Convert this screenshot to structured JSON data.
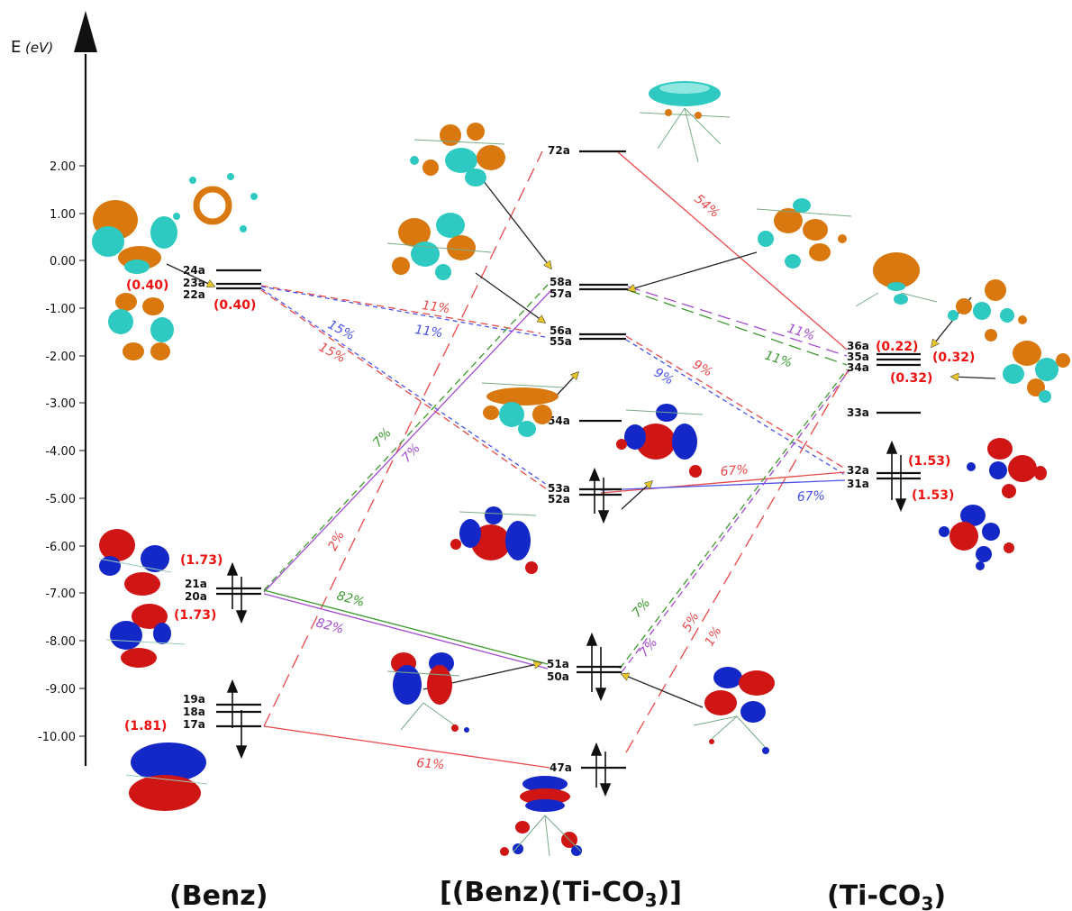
{
  "axis": {
    "label_main": "E",
    "label_unit": "(eV)",
    "ticks": [
      "2.00",
      "1.00",
      "0.00",
      "-1.00",
      "-2.00",
      "-3.00",
      "-4.00",
      "-5.00",
      "-6.00",
      "-7.00",
      "-8.00",
      "-9.00",
      "-10.00"
    ]
  },
  "fragments": {
    "left": "(Benz)",
    "center_a": "[(Benz)(Ti-CO",
    "center_sub": "3",
    "center_b": ")]",
    "right_a": "(Ti-CO",
    "right_sub": "3",
    "right_b": ")"
  },
  "levels": {
    "l24": "24a",
    "l23": "23a",
    "l22": "22a",
    "l21": "21a",
    "l20": "20a",
    "l19": "19a",
    "l18": "18a",
    "l17": "17a",
    "c72": "72a",
    "c58": "58a",
    "c57": "57a",
    "c56": "56a",
    "c55": "55a",
    "c54": "54a",
    "c53": "53a",
    "c52": "52a",
    "c51": "51a",
    "c50": "50a",
    "c47": "47a",
    "r36": "36a",
    "r35": "35a",
    "r34": "34a",
    "r33": "33a",
    "r32": "32a",
    "r31": "31a"
  },
  "occupations": {
    "o1": "(0.40)",
    "o2": "(0.40)",
    "o3": "(1.73)",
    "o4": "(1.73)",
    "o5": "(1.81)",
    "o6": "(0.22)",
    "o7": "(0.32)",
    "o8": "(0.32)",
    "o9": "(1.53)",
    "o10": "(1.53)"
  },
  "percents": {
    "p54": "54%",
    "p11a": "11%",
    "p11b": "11%",
    "p15a": "15%",
    "p15b": "15%",
    "p11c": "11%",
    "p11d": "11%",
    "p9a": "9%",
    "p9b": "9%",
    "p67a": "67%",
    "p67b": "67%",
    "p7a": "7%",
    "p7b": "7%",
    "p2": "2%",
    "p82a": "82%",
    "p82b": "82%",
    "p7c": "7%",
    "p7d": "7%",
    "p5": "5%",
    "p1": "1%",
    "p61": "61%"
  },
  "colors": {
    "red": "#e8494a",
    "blue": "#4a52e8",
    "green": "#3c9a2e",
    "purple": "#a24cd0",
    "orbital_orange": "#d9780f",
    "orbital_cyan": "#2ec9c0",
    "orbital_red": "#d01515",
    "orbital_blue": "#1428c8"
  }
}
